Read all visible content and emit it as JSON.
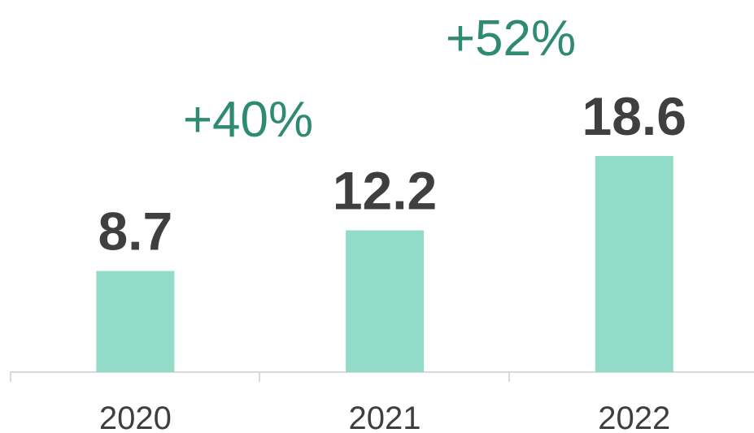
{
  "chart_data": {
    "type": "bar",
    "categories": [
      "2020",
      "2021",
      "2022"
    ],
    "values": [
      8.7,
      12.2,
      18.6
    ],
    "color": "#92dbc8",
    "annotations": [
      "+40%",
      "+52%"
    ]
  }
}
